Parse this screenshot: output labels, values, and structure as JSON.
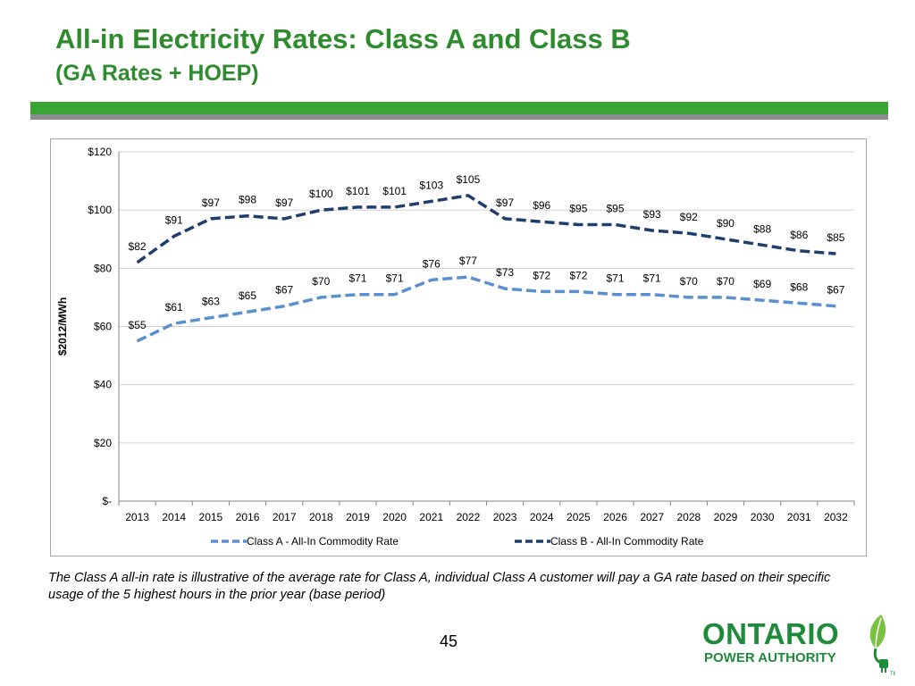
{
  "slide": {
    "title": "All-in Electricity Rates: Class A and Class B",
    "subtitle": "(GA Rates + HOEP)",
    "note": "The Class A  all-in rate is illustrative of the average rate for Class A, individual Class A customer will pay a GA rate based on their specific usage of the 5 highest hours in the prior year (base period)",
    "page_number": "45"
  },
  "logo": {
    "line1": "ONTARIO",
    "line2": "POWER AUTHORITY",
    "mark": "TM",
    "icon": "leaf-plug-icon",
    "color": "#1f8a3a"
  },
  "colors": {
    "title": "#2e8b2e",
    "band_green": "#3aa534",
    "band_gray": "#8a8c8e",
    "class_a": "#5b8fd0",
    "class_b": "#1f3e6e",
    "gridline": "#d0d0d0"
  },
  "chart_data": {
    "type": "line",
    "title": "",
    "xlabel": "",
    "ylabel": "$2012/MWh",
    "ylim": [
      0,
      120
    ],
    "yticks": [
      0,
      20,
      40,
      60,
      80,
      100,
      120
    ],
    "ytick_labels": [
      "$-",
      "$20",
      "$40",
      "$60",
      "$80",
      "$100",
      "$120"
    ],
    "grid": true,
    "legend_position": "bottom",
    "categories": [
      "2013",
      "2014",
      "2015",
      "2016",
      "2017",
      "2018",
      "2019",
      "2020",
      "2021",
      "2022",
      "2023",
      "2024",
      "2025",
      "2026",
      "2027",
      "2028",
      "2029",
      "2030",
      "2031",
      "2032"
    ],
    "series": [
      {
        "name": "Class A - All-In Commodity Rate",
        "color": "#5b8fd0",
        "style": "dashed",
        "values": [
          55,
          61,
          63,
          65,
          67,
          70,
          71,
          71,
          76,
          77,
          73,
          72,
          72,
          71,
          71,
          70,
          70,
          69,
          68,
          67
        ],
        "labels": [
          "$55",
          "$61",
          "$63",
          "$65",
          "$67",
          "$70",
          "$71",
          "$71",
          "$76",
          "$77",
          "$73",
          "$72",
          "$72",
          "$71",
          "$71",
          "$70",
          "$70",
          "$69",
          "$68",
          "$67"
        ]
      },
      {
        "name": "Class B - All-In Commodity Rate",
        "color": "#1f3e6e",
        "style": "dashed",
        "values": [
          82,
          91,
          97,
          98,
          97,
          100,
          101,
          101,
          103,
          105,
          97,
          96,
          95,
          95,
          93,
          92,
          90,
          88,
          86,
          85
        ],
        "labels": [
          "$82",
          "$91",
          "$97",
          "$98",
          "$97",
          "$100",
          "$101",
          "$101",
          "$103",
          "$105",
          "$97",
          "$96",
          "$95",
          "$95",
          "$93",
          "$92",
          "$90",
          "$88",
          "$86",
          "$85"
        ]
      }
    ]
  }
}
